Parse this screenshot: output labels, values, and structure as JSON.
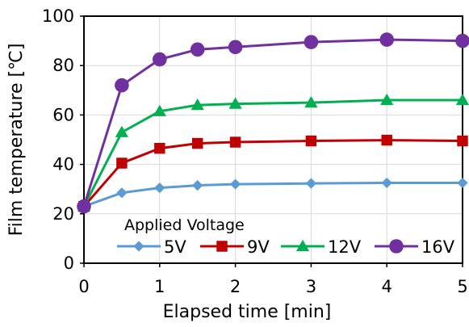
{
  "chart_data": {
    "type": "line",
    "xlabel": "Elapsed time  [min]",
    "ylabel": "Film temperature [℃]",
    "xlim": [
      0,
      5
    ],
    "ylim": [
      0,
      100
    ],
    "x_ticks": [
      0,
      1,
      2,
      3,
      4,
      5
    ],
    "y_ticks": [
      0,
      20,
      40,
      60,
      80,
      100
    ],
    "grid": "horizontal gridlines and vertical gridlines at each integer x",
    "legend": {
      "title": "Applied Voltage",
      "placement": "bottom inside plot area"
    },
    "x": [
      0,
      0.5,
      1,
      1.5,
      2,
      3,
      4,
      5
    ],
    "series": [
      {
        "name": "5V",
        "color": "#5b9bd5",
        "marker": "diamond",
        "values": [
          23,
          28.5,
          30.5,
          31.5,
          32,
          32.3,
          32.5,
          32.5
        ]
      },
      {
        "name": "9V",
        "color": "#c00000",
        "marker": "square",
        "values": [
          23,
          40.5,
          46.5,
          48.5,
          49,
          49.5,
          49.8,
          49.5
        ]
      },
      {
        "name": "12V",
        "color": "#00b050",
        "marker": "triangle",
        "values": [
          23,
          53,
          61.5,
          64,
          64.5,
          65,
          66,
          66
        ]
      },
      {
        "name": "16V",
        "color": "#7030a0",
        "marker": "circle",
        "values": [
          23,
          72,
          82.5,
          86.5,
          87.5,
          89.5,
          90.5,
          90
        ]
      }
    ]
  }
}
